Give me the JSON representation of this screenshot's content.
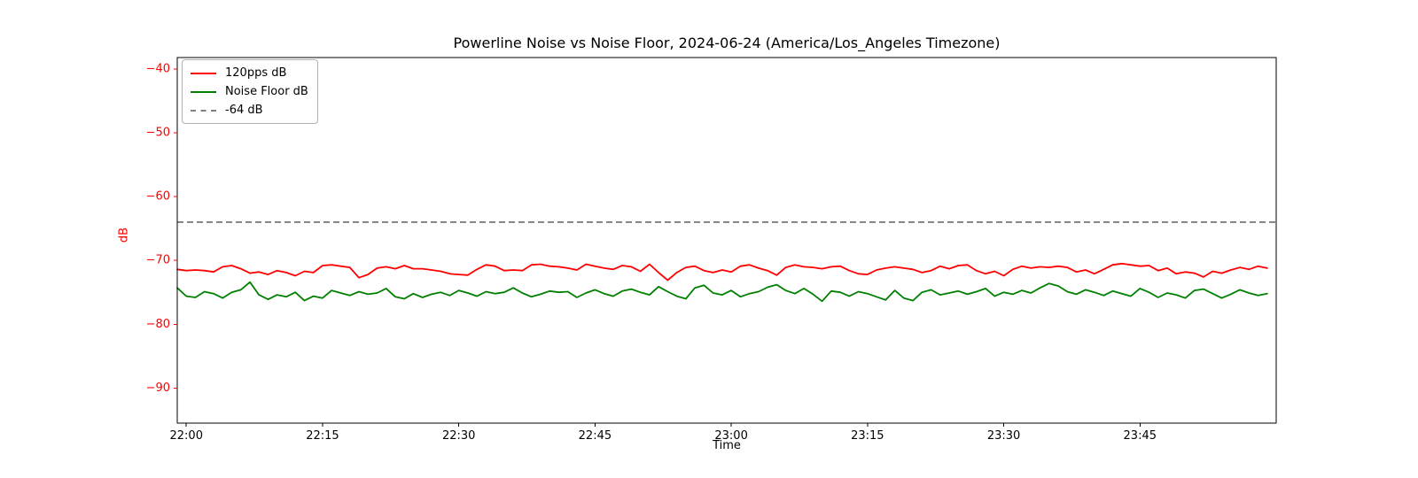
{
  "chart_data": {
    "type": "line",
    "title": "Powerline Noise vs Noise Floor, 2024-06-24 (America/Los_Angeles Timezone)",
    "xlabel": "Time",
    "ylabel": "dB",
    "axis_color": "#000000",
    "y_axis": {
      "tick_labels": [
        "−40",
        "−50",
        "−60",
        "−70",
        "−80",
        "−90"
      ],
      "tick_values": [
        -40,
        -50,
        -60,
        -70,
        -80,
        -90
      ],
      "ylim": [
        -95.5,
        -38.2
      ],
      "tick_color": "#ff0000"
    },
    "x_axis": {
      "tick_labels": [
        "22:00",
        "22:15",
        "22:30",
        "22:45",
        "23:00",
        "23:15",
        "23:30",
        "23:45"
      ],
      "tick_minutes": [
        0,
        15,
        30,
        45,
        60,
        75,
        90,
        105
      ],
      "xlim_minutes": [
        -1,
        120
      ],
      "tick_color": "#000000"
    },
    "reference_line": {
      "label": "-64 dB",
      "value": -64,
      "color": "#7f7f7f",
      "style": "dashed"
    },
    "series": [
      {
        "name": "120pps dB",
        "color": "#ff0000",
        "style": "solid",
        "x_start_minute": -1,
        "x_step_minutes": 1,
        "values": [
          -71.4,
          -71.6,
          -71.5,
          -71.6,
          -71.8,
          -71.0,
          -70.8,
          -71.3,
          -72.0,
          -71.8,
          -72.2,
          -71.6,
          -71.9,
          -72.4,
          -71.7,
          -71.9,
          -70.8,
          -70.7,
          -70.9,
          -71.1,
          -72.7,
          -72.2,
          -71.2,
          -71.0,
          -71.3,
          -70.8,
          -71.3,
          -71.3,
          -71.5,
          -71.7,
          -72.1,
          -72.2,
          -72.3,
          -71.4,
          -70.7,
          -70.9,
          -71.6,
          -71.5,
          -71.6,
          -70.7,
          -70.6,
          -70.9,
          -71.0,
          -71.2,
          -71.5,
          -70.6,
          -70.9,
          -71.2,
          -71.4,
          -70.8,
          -71.0,
          -71.7,
          -70.6,
          -71.9,
          -73.1,
          -71.9,
          -71.1,
          -70.9,
          -71.6,
          -71.9,
          -71.5,
          -71.8,
          -70.9,
          -70.7,
          -71.2,
          -71.6,
          -72.3,
          -71.1,
          -70.7,
          -71.0,
          -71.1,
          -71.3,
          -71.0,
          -70.9,
          -71.6,
          -72.1,
          -72.2,
          -71.5,
          -71.2,
          -71.0,
          -71.2,
          -71.4,
          -71.9,
          -71.6,
          -70.9,
          -71.3,
          -70.8,
          -70.7,
          -71.6,
          -72.1,
          -71.7,
          -72.4,
          -71.4,
          -70.9,
          -71.2,
          -71.0,
          -71.1,
          -70.9,
          -71.1,
          -71.8,
          -71.5,
          -72.1,
          -71.4,
          -70.7,
          -70.5,
          -70.7,
          -70.9,
          -70.8,
          -71.6,
          -71.2,
          -72.1,
          -71.8,
          -72.0,
          -72.6,
          -71.7,
          -72.0,
          -71.5,
          -71.1,
          -71.4,
          -70.9,
          -71.2
        ]
      },
      {
        "name": "Noise Floor dB",
        "color": "#008000",
        "style": "solid",
        "x_start_minute": -1,
        "x_step_minutes": 1,
        "values": [
          -74.3,
          -75.6,
          -75.8,
          -74.9,
          -75.2,
          -75.9,
          -75.0,
          -74.6,
          -73.4,
          -75.4,
          -76.1,
          -75.4,
          -75.7,
          -75.0,
          -76.3,
          -75.6,
          -75.9,
          -74.7,
          -75.1,
          -75.5,
          -74.9,
          -75.3,
          -75.1,
          -74.4,
          -75.7,
          -76.0,
          -75.2,
          -75.8,
          -75.3,
          -75.0,
          -75.5,
          -74.7,
          -75.1,
          -75.6,
          -74.9,
          -75.2,
          -75.0,
          -74.3,
          -75.1,
          -75.7,
          -75.3,
          -74.8,
          -75.0,
          -74.9,
          -75.8,
          -75.1,
          -74.6,
          -75.2,
          -75.6,
          -74.8,
          -74.5,
          -75.0,
          -75.4,
          -74.1,
          -74.9,
          -75.6,
          -76.0,
          -74.3,
          -73.9,
          -75.1,
          -75.4,
          -74.7,
          -75.7,
          -75.2,
          -74.9,
          -74.2,
          -73.8,
          -74.7,
          -75.2,
          -74.4,
          -75.3,
          -76.4,
          -74.8,
          -75.0,
          -75.6,
          -74.9,
          -75.2,
          -75.7,
          -76.2,
          -74.7,
          -75.9,
          -76.3,
          -75.0,
          -74.6,
          -75.4,
          -75.1,
          -74.8,
          -75.3,
          -74.9,
          -74.4,
          -75.6,
          -75.0,
          -75.3,
          -74.7,
          -75.1,
          -74.3,
          -73.6,
          -74.0,
          -74.9,
          -75.3,
          -74.6,
          -75.0,
          -75.5,
          -74.8,
          -75.2,
          -75.6,
          -74.4,
          -75.0,
          -75.8,
          -75.1,
          -75.4,
          -75.9,
          -74.7,
          -74.5,
          -75.2,
          -75.9,
          -75.3,
          -74.6,
          -75.1,
          -75.5,
          -75.2
        ]
      }
    ]
  },
  "legend": {
    "items": [
      {
        "label": "120pps dB"
      },
      {
        "label": "Noise Floor dB"
      },
      {
        "label": "-64 dB"
      }
    ]
  }
}
